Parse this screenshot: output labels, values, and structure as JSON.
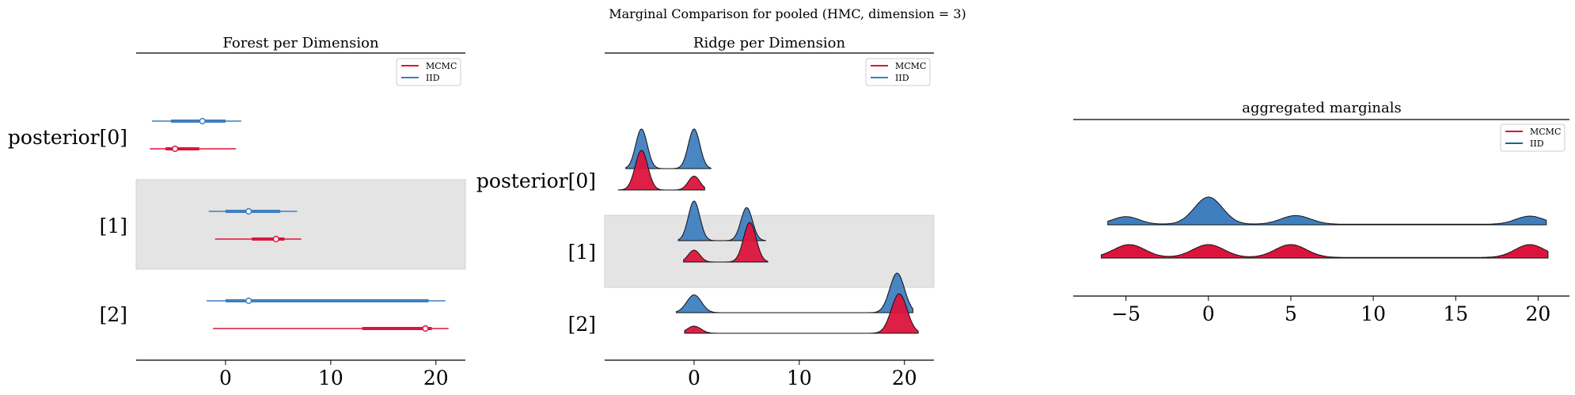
{
  "figure": {
    "suptitle": "Marginal Comparison for pooled (HMC, dimension = 3)"
  },
  "colors": {
    "mcmc": "#dc143c",
    "iid": "#3f7fbf",
    "iid_dark": "#1f5f9f",
    "band": "#e4e4e4"
  },
  "chart_data": [
    {
      "type": "forest",
      "title": "Forest per Dimension",
      "ylabels": [
        "posterior[0]",
        "[1]",
        "[2]"
      ],
      "xticks": [
        0,
        10,
        20
      ],
      "xlim": [
        -8.5,
        22.8
      ],
      "legend": {
        "placement": "upper right",
        "entries": [
          "MCMC",
          "IID"
        ]
      },
      "series": [
        {
          "name": "IID",
          "rows": [
            {
              "point": -2.2,
              "hdi_50": [
                -5.2,
                0.0
              ],
              "hdi_94": [
                -7.0,
                1.5
              ]
            },
            {
              "point": 2.2,
              "hdi_50": [
                0.0,
                5.2
              ],
              "hdi_94": [
                -1.6,
                6.8
              ]
            },
            {
              "point": 2.2,
              "hdi_50": [
                0.0,
                19.3
              ],
              "hdi_94": [
                -1.8,
                20.9
              ]
            }
          ]
        },
        {
          "name": "MCMC",
          "rows": [
            {
              "point": -4.8,
              "hdi_50": [
                -5.7,
                -2.5
              ],
              "hdi_94": [
                -7.2,
                1.0
              ]
            },
            {
              "point": 4.8,
              "hdi_50": [
                2.5,
                5.6
              ],
              "hdi_94": [
                -1.0,
                7.2
              ]
            },
            {
              "point": 19.0,
              "hdi_50": [
                13.0,
                19.6
              ],
              "hdi_94": [
                -1.2,
                21.2
              ]
            }
          ]
        }
      ]
    },
    {
      "type": "ridgeplot",
      "title": "Ridge per Dimension",
      "ylabels": [
        "posterior[0]",
        "[1]",
        "[2]"
      ],
      "xticks": [
        0,
        10,
        20
      ],
      "xlim": [
        -8.5,
        22.8
      ],
      "legend": {
        "placement": "upper right",
        "entries": [
          "MCMC",
          "IID"
        ]
      },
      "series": [
        {
          "name": "IID",
          "ridges": [
            {
              "range": [
                -6.5,
                1.6
              ],
              "modes": [
                [
                  -5.0,
                  1.0,
                  0.55
                ],
                [
                  0.0,
                  1.0,
                  0.55
                ]
              ]
            },
            {
              "range": [
                -1.5,
                6.8
              ],
              "modes": [
                [
                  0.0,
                  0.9,
                  0.55
                ],
                [
                  5.0,
                  0.75,
                  0.55
                ]
              ]
            },
            {
              "range": [
                -1.7,
                20.8
              ],
              "modes": [
                [
                  0.0,
                  0.45,
                  0.7
                ],
                [
                  19.3,
                  1.0,
                  0.7
                ]
              ]
            }
          ]
        },
        {
          "name": "MCMC",
          "rows_note": "",
          "ridges": [
            {
              "range": [
                -7.2,
                1.0
              ],
              "modes": [
                [
                  -5.0,
                  1.0,
                  0.6
                ],
                [
                  0.0,
                  0.35,
                  0.55
                ]
              ]
            },
            {
              "range": [
                -1.0,
                7.0
              ],
              "modes": [
                [
                  0.0,
                  0.3,
                  0.55
                ],
                [
                  5.3,
                  1.0,
                  0.6
                ]
              ]
            },
            {
              "range": [
                -0.9,
                21.3
              ],
              "modes": [
                [
                  0.0,
                  0.18,
                  0.65
                ],
                [
                  19.5,
                  1.0,
                  0.75
                ]
              ]
            }
          ]
        }
      ]
    },
    {
      "type": "area",
      "title": "aggregated marginals",
      "xticks": [
        -5,
        0,
        5,
        10,
        15,
        20
      ],
      "xlim": [
        -8.2,
        21.9
      ],
      "legend": {
        "placement": "upper right",
        "entries": [
          "MCMC",
          "IID"
        ]
      },
      "series": [
        {
          "name": "IID",
          "range": [
            -6.1,
            20.5
          ],
          "modes": [
            [
              -5.0,
              0.28,
              0.8
            ],
            [
              0.0,
              1.0,
              0.85
            ],
            [
              5.3,
              0.32,
              0.9
            ],
            [
              19.5,
              0.3,
              0.85
            ]
          ]
        },
        {
          "name": "MCMC",
          "range": [
            -6.5,
            20.6
          ],
          "modes": [
            [
              -4.8,
              0.42,
              0.95
            ],
            [
              0.0,
              0.42,
              0.95
            ],
            [
              5.0,
              0.42,
              0.95
            ],
            [
              19.5,
              0.42,
              0.9
            ]
          ]
        }
      ]
    }
  ]
}
